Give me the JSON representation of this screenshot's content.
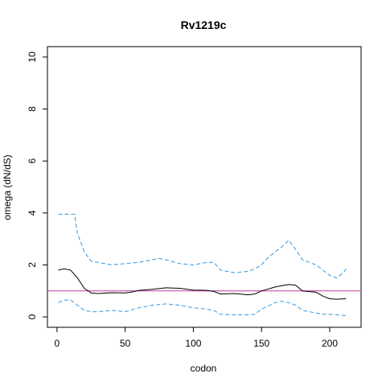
{
  "chart_data": {
    "type": "line",
    "title": "Rv1219c",
    "xlabel": "codon",
    "ylabel": "omega (dN/dS)",
    "xlim": [
      -7,
      223
    ],
    "ylim": [
      -0.4,
      10.4
    ],
    "xticks": [
      0,
      50,
      100,
      150,
      200
    ],
    "yticks": [
      0,
      2,
      4,
      6,
      8,
      10
    ],
    "grid": false,
    "reference_line": {
      "y": 1,
      "color": "#cc3399"
    },
    "series": [
      {
        "role": "estimate",
        "color": "#000000",
        "dash": "solid",
        "x": [
          1,
          5,
          10,
          15,
          20,
          25,
          30,
          40,
          50,
          55,
          60,
          70,
          80,
          90,
          100,
          110,
          115,
          120,
          130,
          140,
          145,
          150,
          160,
          165,
          170,
          175,
          180,
          190,
          195,
          200,
          205,
          212
        ],
        "y": [
          1.8,
          1.85,
          1.8,
          1.5,
          1.1,
          0.92,
          0.9,
          0.93,
          0.92,
          0.96,
          1.02,
          1.06,
          1.12,
          1.1,
          1.03,
          1.02,
          0.98,
          0.88,
          0.9,
          0.85,
          0.88,
          1.0,
          1.15,
          1.2,
          1.25,
          1.22,
          1.0,
          0.95,
          0.8,
          0.7,
          0.68,
          0.7
        ]
      },
      {
        "role": "upper",
        "color": "#3399dd",
        "dash": "dashed",
        "x": [
          1,
          5,
          10,
          13,
          15,
          18,
          20,
          25,
          30,
          40,
          50,
          60,
          65,
          70,
          75,
          80,
          90,
          100,
          105,
          110,
          115,
          120,
          125,
          130,
          140,
          145,
          150,
          155,
          160,
          165,
          168,
          170,
          175,
          180,
          190,
          195,
          200,
          205,
          210,
          212
        ],
        "y": [
          3.95,
          3.95,
          3.95,
          3.95,
          3.2,
          2.8,
          2.5,
          2.15,
          2.1,
          2.0,
          2.05,
          2.1,
          2.15,
          2.2,
          2.25,
          2.2,
          2.05,
          2.0,
          2.05,
          2.1,
          2.1,
          1.8,
          1.75,
          1.7,
          1.75,
          1.85,
          2.0,
          2.3,
          2.5,
          2.7,
          2.85,
          2.95,
          2.6,
          2.2,
          2.0,
          1.8,
          1.6,
          1.5,
          1.7,
          1.85
        ]
      },
      {
        "role": "lower",
        "color": "#3399dd",
        "dash": "dashed",
        "x": [
          1,
          5,
          10,
          15,
          20,
          25,
          30,
          40,
          50,
          60,
          70,
          80,
          90,
          100,
          110,
          115,
          120,
          130,
          140,
          145,
          150,
          160,
          165,
          170,
          175,
          180,
          190,
          195,
          200,
          205,
          212
        ],
        "y": [
          0.55,
          0.65,
          0.65,
          0.45,
          0.25,
          0.2,
          0.2,
          0.25,
          0.2,
          0.35,
          0.45,
          0.5,
          0.45,
          0.35,
          0.3,
          0.25,
          0.1,
          0.08,
          0.08,
          0.1,
          0.3,
          0.55,
          0.6,
          0.55,
          0.45,
          0.25,
          0.15,
          0.1,
          0.1,
          0.08,
          0.05
        ]
      }
    ]
  }
}
